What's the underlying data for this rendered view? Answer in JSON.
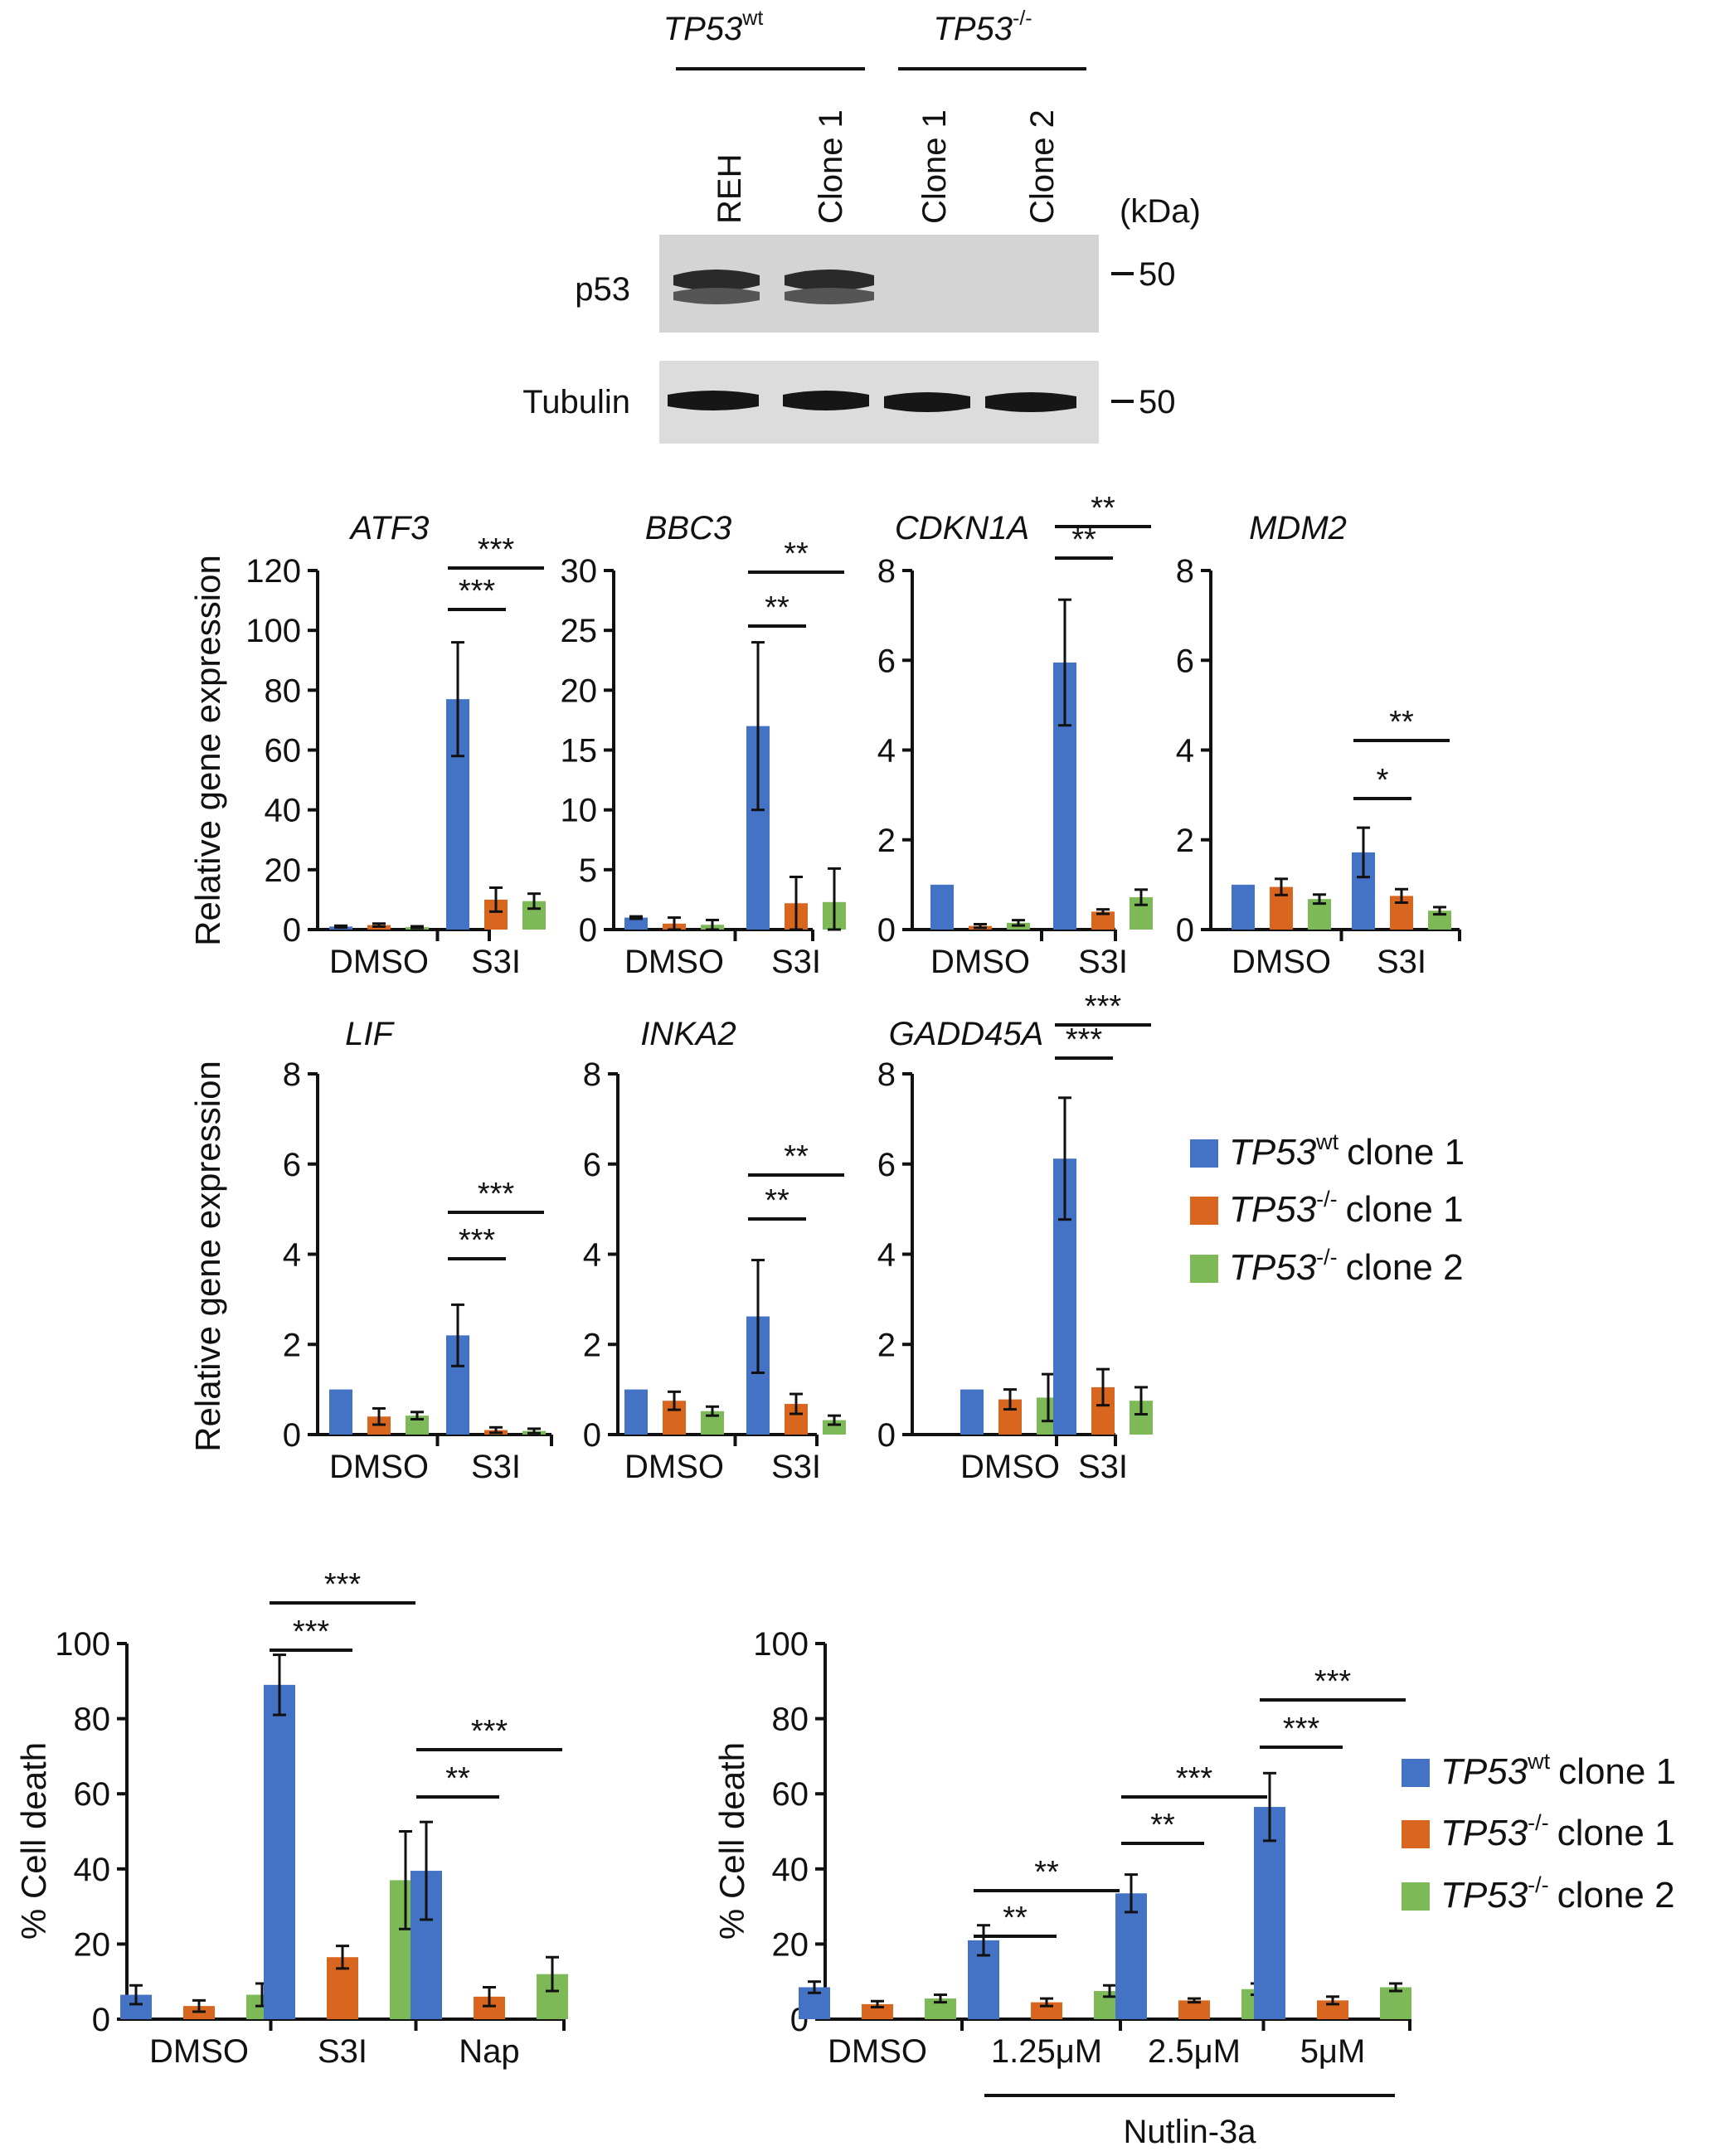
{
  "colors": {
    "wt1": "#4472C4",
    "ko1": "#D9661F",
    "ko2": "#7DB956",
    "axis": "#111111",
    "blot_bg": "#d3d3d3",
    "band": "#1a1a1a"
  },
  "western": {
    "groups": [
      {
        "gene": "TP53",
        "sup": "wt"
      },
      {
        "gene": "TP53",
        "sup": "-/-"
      }
    ],
    "lanes": [
      "REH",
      "Clone 1",
      "Clone 1",
      "Clone 2"
    ],
    "kda_label": "(kDa)",
    "rows": [
      {
        "label": "p53",
        "marker": "50"
      },
      {
        "label": "Tubulin",
        "marker": "50"
      }
    ]
  },
  "legend": [
    {
      "gene": "TP53",
      "sup": "wt",
      "text": "clone 1"
    },
    {
      "gene": "TP53",
      "sup": "-/-",
      "text": "clone 1"
    },
    {
      "gene": "TP53",
      "sup": "-/-",
      "text": "clone 2"
    }
  ],
  "chart_data": [
    {
      "type": "bar",
      "title": "ATF3",
      "ylabel": "Relative gene expression",
      "ylim": [
        0,
        120
      ],
      "yticks": [
        0,
        20,
        40,
        60,
        80,
        100,
        120
      ],
      "categories": [
        "DMSO",
        "S3I"
      ],
      "series": [
        {
          "name": "TP53wt clone 1",
          "values": [
            1,
            77
          ],
          "errors": [
            0.3,
            19
          ]
        },
        {
          "name": "TP53-/- clone 1",
          "values": [
            1.5,
            10
          ],
          "errors": [
            0.5,
            4
          ]
        },
        {
          "name": "TP53-/- clone 2",
          "values": [
            0.8,
            9.5
          ],
          "errors": [
            0.3,
            2.5
          ]
        }
      ],
      "significance": [
        {
          "category": "S3I",
          "from": 0,
          "to": 1,
          "label": "***"
        },
        {
          "category": "S3I",
          "from": 0,
          "to": 2,
          "label": "***"
        }
      ]
    },
    {
      "type": "bar",
      "title": "BBC3",
      "ylabel": "",
      "ylim": [
        0,
        30
      ],
      "yticks": [
        0,
        5,
        10,
        15,
        20,
        25,
        30
      ],
      "categories": [
        "DMSO",
        "S3I"
      ],
      "series": [
        {
          "name": "TP53wt clone 1",
          "values": [
            1,
            17
          ],
          "errors": [
            0.1,
            7
          ]
        },
        {
          "name": "TP53-/- clone 1",
          "values": [
            0.5,
            2.2
          ],
          "errors": [
            0.5,
            2.2
          ]
        },
        {
          "name": "TP53-/- clone 2",
          "values": [
            0.4,
            2.3
          ],
          "errors": [
            0.4,
            2.8
          ]
        }
      ],
      "significance": [
        {
          "category": "S3I",
          "from": 0,
          "to": 1,
          "label": "**"
        },
        {
          "category": "S3I",
          "from": 0,
          "to": 2,
          "label": "**"
        }
      ]
    },
    {
      "type": "bar",
      "title": "CDKN1A",
      "ylabel": "",
      "ylim": [
        0,
        8
      ],
      "yticks": [
        0,
        2,
        4,
        6,
        8
      ],
      "categories": [
        "DMSO",
        "S3I"
      ],
      "series": [
        {
          "name": "TP53wt clone 1",
          "values": [
            1,
            5.95
          ],
          "errors": [
            0,
            1.4
          ]
        },
        {
          "name": "TP53-/- clone 1",
          "values": [
            0.08,
            0.4
          ],
          "errors": [
            0.04,
            0.05
          ]
        },
        {
          "name": "TP53-/- clone 2",
          "values": [
            0.15,
            0.72
          ],
          "errors": [
            0.06,
            0.17
          ]
        }
      ],
      "significance": [
        {
          "category": "S3I",
          "from": 0,
          "to": 1,
          "label": "**"
        },
        {
          "category": "S3I",
          "from": 0,
          "to": 2,
          "label": "**"
        }
      ]
    },
    {
      "type": "bar",
      "title": "MDM2",
      "ylabel": "",
      "ylim": [
        0,
        8
      ],
      "yticks": [
        0,
        2,
        4,
        6,
        8
      ],
      "categories": [
        "DMSO",
        "S3I"
      ],
      "series": [
        {
          "name": "TP53wt clone 1",
          "values": [
            1,
            1.72
          ],
          "errors": [
            0,
            0.55
          ]
        },
        {
          "name": "TP53-/- clone 1",
          "values": [
            0.95,
            0.75
          ],
          "errors": [
            0.18,
            0.15
          ]
        },
        {
          "name": "TP53-/- clone 2",
          "values": [
            0.68,
            0.42
          ],
          "errors": [
            0.1,
            0.08
          ]
        }
      ],
      "significance": [
        {
          "category": "S3I",
          "from": 0,
          "to": 1,
          "label": "*"
        },
        {
          "category": "S3I",
          "from": 0,
          "to": 2,
          "label": "**"
        }
      ]
    },
    {
      "type": "bar",
      "title": "LIF",
      "ylabel": "Relative gene expression",
      "ylim": [
        0,
        8
      ],
      "yticks": [
        0,
        2,
        4,
        6,
        8
      ],
      "categories": [
        "DMSO",
        "S3I"
      ],
      "series": [
        {
          "name": "TP53wt clone 1",
          "values": [
            1,
            2.2
          ],
          "errors": [
            0,
            0.68
          ]
        },
        {
          "name": "TP53-/- clone 1",
          "values": [
            0.4,
            0.1
          ],
          "errors": [
            0.18,
            0.06
          ]
        },
        {
          "name": "TP53-/- clone 2",
          "values": [
            0.42,
            0.08
          ],
          "errors": [
            0.08,
            0.05
          ]
        }
      ],
      "significance": [
        {
          "category": "S3I",
          "from": 0,
          "to": 1,
          "label": "***"
        },
        {
          "category": "S3I",
          "from": 0,
          "to": 2,
          "label": "***"
        }
      ]
    },
    {
      "type": "bar",
      "title": "INKA2",
      "ylabel": "",
      "ylim": [
        0,
        8
      ],
      "yticks": [
        0,
        2,
        4,
        6,
        8
      ],
      "categories": [
        "DMSO",
        "S3I"
      ],
      "series": [
        {
          "name": "TP53wt clone 1",
          "values": [
            1,
            2.62
          ],
          "errors": [
            0,
            1.25
          ]
        },
        {
          "name": "TP53-/- clone 1",
          "values": [
            0.75,
            0.68
          ],
          "errors": [
            0.2,
            0.22
          ]
        },
        {
          "name": "TP53-/- clone 2",
          "values": [
            0.52,
            0.32
          ],
          "errors": [
            0.1,
            0.1
          ]
        }
      ],
      "significance": [
        {
          "category": "S3I",
          "from": 0,
          "to": 1,
          "label": "**"
        },
        {
          "category": "S3I",
          "from": 0,
          "to": 2,
          "label": "**"
        }
      ]
    },
    {
      "type": "bar",
      "title": "GADD45A",
      "ylabel": "",
      "ylim": [
        0,
        8
      ],
      "yticks": [
        0,
        2,
        4,
        6,
        8
      ],
      "categories": [
        "DMSO",
        "S3I"
      ],
      "series": [
        {
          "name": "TP53wt clone 1",
          "values": [
            1,
            6.12
          ],
          "errors": [
            0,
            1.35
          ]
        },
        {
          "name": "TP53-/- clone 1",
          "values": [
            0.78,
            1.05
          ],
          "errors": [
            0.22,
            0.4
          ]
        },
        {
          "name": "TP53-/- clone 2",
          "values": [
            0.82,
            0.75
          ],
          "errors": [
            0.52,
            0.3
          ]
        }
      ],
      "significance": [
        {
          "category": "S3I",
          "from": 0,
          "to": 1,
          "label": "***"
        },
        {
          "category": "S3I",
          "from": 0,
          "to": 2,
          "label": "***"
        }
      ]
    },
    {
      "type": "bar",
      "title": "",
      "ylabel": "% Cell death",
      "ylim": [
        0,
        100
      ],
      "yticks": [
        0,
        20,
        40,
        60,
        80,
        100
      ],
      "categories": [
        "DMSO",
        "S3I",
        "Nap"
      ],
      "series": [
        {
          "name": "TP53wt clone 1",
          "values": [
            6.5,
            89,
            39.5
          ],
          "errors": [
            2.5,
            8,
            13
          ]
        },
        {
          "name": "TP53-/- clone 1",
          "values": [
            3.5,
            16.5,
            6
          ],
          "errors": [
            1.5,
            3,
            2.5
          ]
        },
        {
          "name": "TP53-/- clone 2",
          "values": [
            6.5,
            37,
            12
          ],
          "errors": [
            3,
            13,
            4.5
          ]
        }
      ],
      "significance": [
        {
          "category": "S3I",
          "from": 0,
          "to": 1,
          "label": "***"
        },
        {
          "category": "S3I",
          "from": 0,
          "to": 2,
          "label": "***"
        },
        {
          "category": "Nap",
          "from": 0,
          "to": 1,
          "label": "**"
        },
        {
          "category": "Nap",
          "from": 0,
          "to": 2,
          "label": "***"
        }
      ]
    },
    {
      "type": "bar",
      "title": "",
      "ylabel": "% Cell death",
      "ylim": [
        0,
        100
      ],
      "yticks": [
        0,
        20,
        40,
        60,
        80,
        100
      ],
      "categories": [
        "DMSO",
        "1.25μM",
        "2.5μM",
        "5μM"
      ],
      "group_label": "Nutlin-3a",
      "series": [
        {
          "name": "TP53wt clone 1",
          "values": [
            8.5,
            21,
            33.5,
            56.5
          ],
          "errors": [
            1.5,
            4,
            5,
            9
          ]
        },
        {
          "name": "TP53-/- clone 1",
          "values": [
            4,
            4.5,
            5,
            5
          ],
          "errors": [
            0.8,
            1,
            0.5,
            1
          ]
        },
        {
          "name": "TP53-/- clone 2",
          "values": [
            5.5,
            7.5,
            8,
            8.5
          ],
          "errors": [
            1,
            1.5,
            1.5,
            1
          ]
        }
      ],
      "significance": [
        {
          "category": "1.25μM",
          "from": 0,
          "to": 1,
          "label": "**"
        },
        {
          "category": "1.25μM",
          "from": 0,
          "to": 2,
          "label": "**"
        },
        {
          "category": "2.5μM",
          "from": 0,
          "to": 1,
          "label": "**"
        },
        {
          "category": "2.5μM",
          "from": 0,
          "to": 2,
          "label": "***"
        },
        {
          "category": "5μM",
          "from": 0,
          "to": 1,
          "label": "***"
        },
        {
          "category": "5μM",
          "from": 0,
          "to": 2,
          "label": "***"
        }
      ]
    }
  ]
}
